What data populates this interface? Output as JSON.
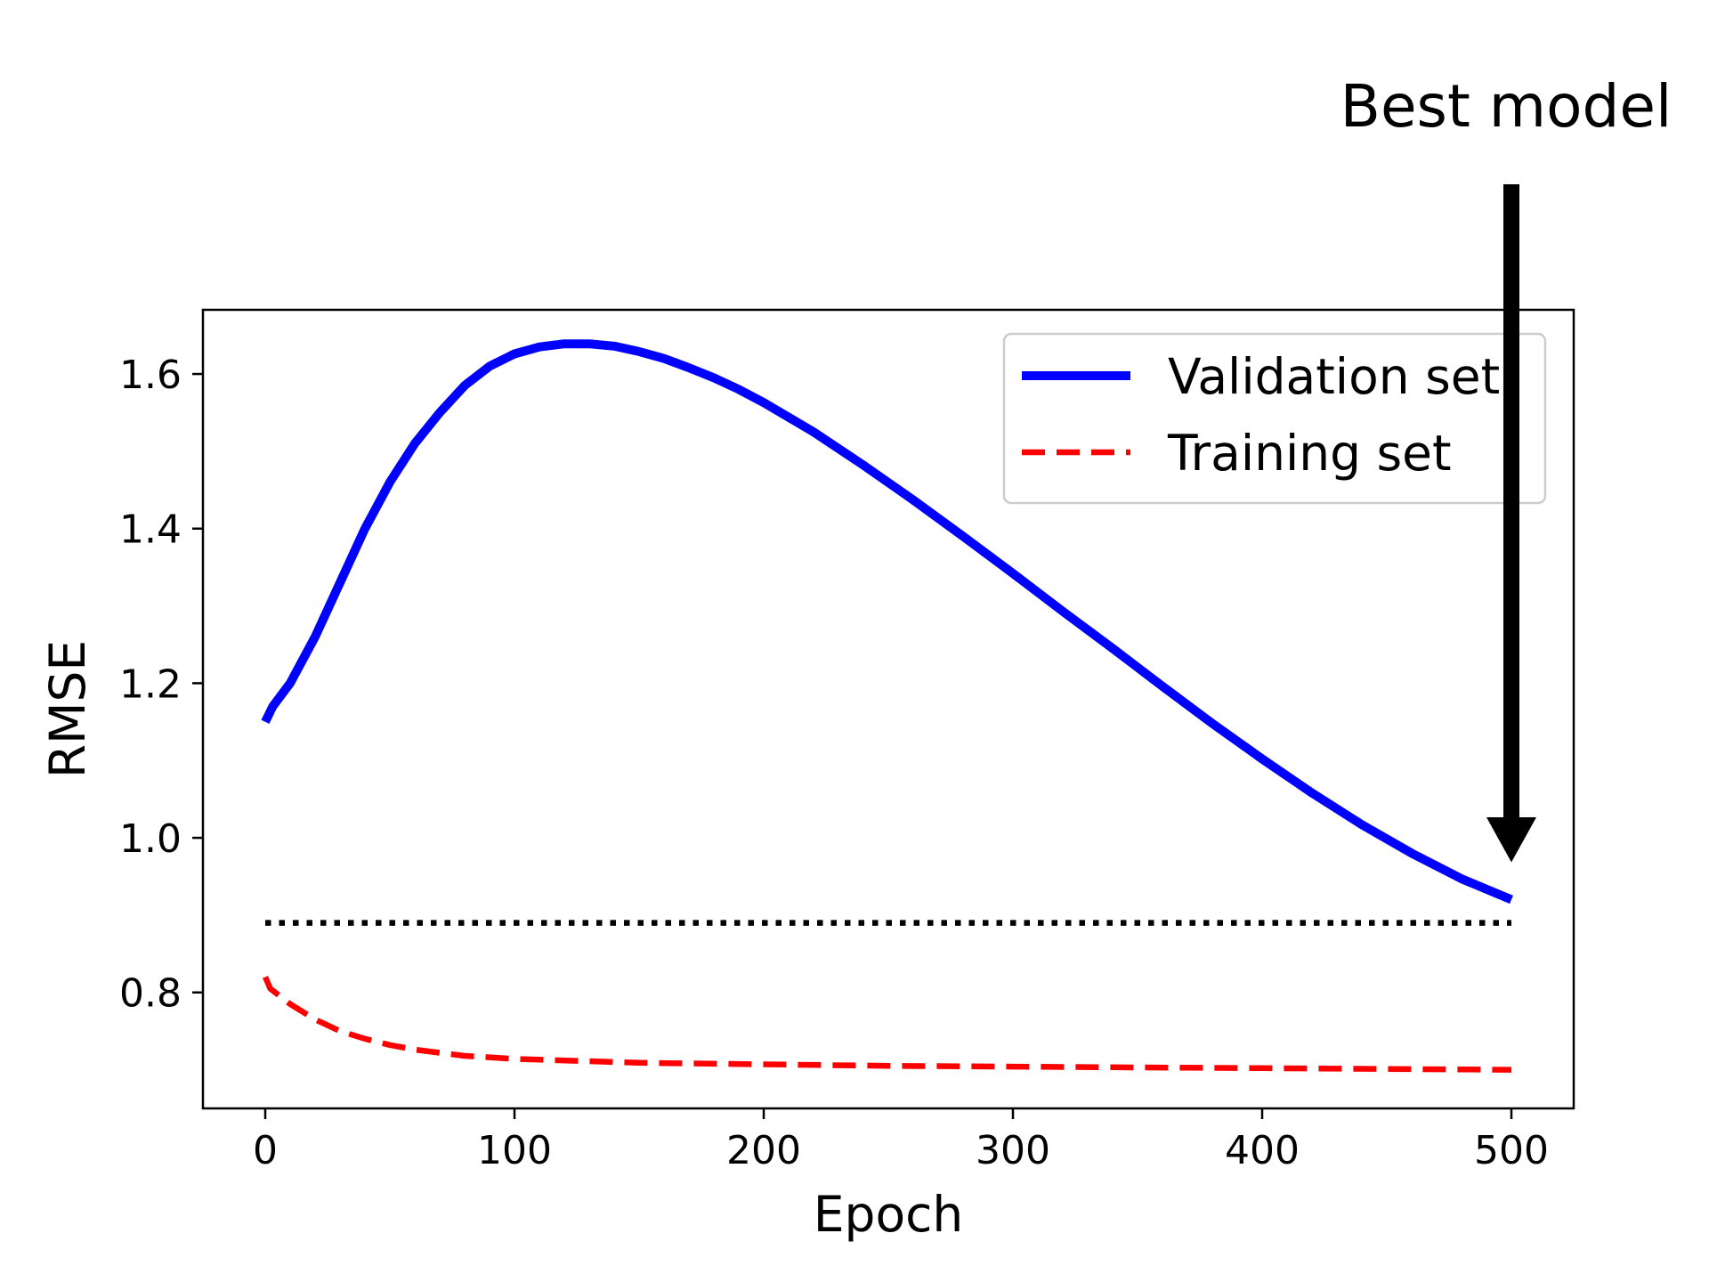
{
  "chart_data": {
    "type": "line",
    "xlabel": "Epoch",
    "ylabel": "RMSE",
    "xlim": [
      -25,
      525
    ],
    "ylim": [
      0.65,
      1.683
    ],
    "xticks": [
      0,
      100,
      200,
      300,
      400,
      500
    ],
    "xtick_labels": [
      "0",
      "100",
      "200",
      "300",
      "400",
      "500"
    ],
    "yticks": [
      0.8,
      1.0,
      1.2,
      1.4,
      1.6
    ],
    "ytick_labels": [
      "0.8",
      "1.0",
      "1.2",
      "1.4",
      "1.6"
    ],
    "grid": false,
    "legend_position": "upper-right",
    "series": [
      {
        "name": "Validation set",
        "style": "solid",
        "color": "#0000ff",
        "x": [
          0,
          3,
          10,
          20,
          30,
          40,
          50,
          60,
          70,
          80,
          90,
          100,
          110,
          120,
          130,
          140,
          150,
          160,
          170,
          180,
          190,
          200,
          220,
          240,
          260,
          280,
          300,
          320,
          340,
          360,
          380,
          400,
          420,
          440,
          460,
          480,
          500
        ],
        "values": [
          1.15,
          1.17,
          1.2,
          1.26,
          1.33,
          1.4,
          1.46,
          1.51,
          1.55,
          1.585,
          1.61,
          1.626,
          1.635,
          1.639,
          1.639,
          1.636,
          1.629,
          1.62,
          1.608,
          1.595,
          1.58,
          1.563,
          1.525,
          1.482,
          1.437,
          1.39,
          1.342,
          1.293,
          1.245,
          1.196,
          1.148,
          1.102,
          1.058,
          1.017,
          0.98,
          0.947,
          0.92
        ]
      },
      {
        "name": "Training set",
        "style": "dashed",
        "color": "#ff0000",
        "x": [
          0,
          2,
          10,
          20,
          30,
          40,
          50,
          60,
          80,
          100,
          150,
          200,
          250,
          300,
          350,
          400,
          450,
          500
        ],
        "values": [
          0.82,
          0.805,
          0.785,
          0.765,
          0.75,
          0.74,
          0.732,
          0.726,
          0.718,
          0.714,
          0.709,
          0.707,
          0.705,
          0.704,
          0.703,
          0.702,
          0.701,
          0.7
        ]
      },
      {
        "style": "dotted",
        "color": "#000000",
        "x": [
          0,
          500
        ],
        "values": [
          0.89,
          0.89
        ]
      }
    ],
    "annotations": [
      {
        "text": "Best model",
        "x": 500,
        "y": 0.92
      }
    ]
  }
}
